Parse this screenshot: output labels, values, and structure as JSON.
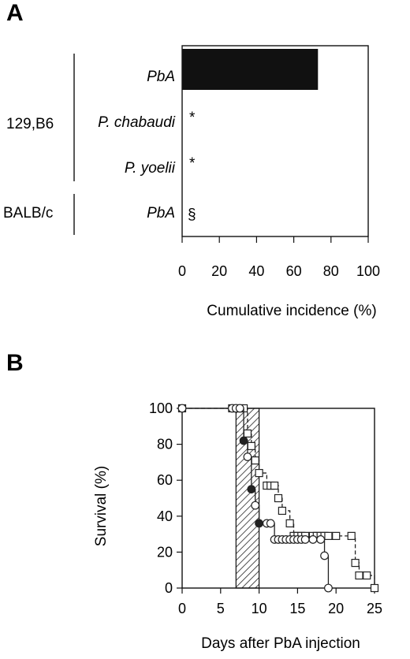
{
  "panels": {
    "a_letter": "A",
    "b_letter": "B"
  },
  "chart_data": [
    {
      "type": "bar",
      "orientation": "horizontal",
      "groups": [
        {
          "name": "129,B6",
          "categories": [
            "PbA",
            "P. chabaudi",
            "P. yoelii"
          ]
        },
        {
          "name": "BALB/c",
          "categories": [
            "PbA"
          ]
        }
      ],
      "categories": [
        "PbA",
        "P. chabaudi",
        "P. yoelii",
        "PbA"
      ],
      "values": [
        73,
        0,
        0,
        0
      ],
      "annotations": [
        "",
        "*",
        "*",
        "§"
      ],
      "xlabel": "Cumulative incidence (%)",
      "xlim": [
        0,
        100
      ],
      "xticks": [
        "0",
        "20",
        "40",
        "60",
        "80",
        "100"
      ],
      "bar_color": "#111111"
    },
    {
      "type": "line",
      "xlabel": "Days after PbA injection",
      "ylabel": "Survival (%)",
      "xlim": [
        0,
        25
      ],
      "ylim": [
        0,
        100
      ],
      "xticks": [
        "0",
        "5",
        "10",
        "15",
        "20",
        "25"
      ],
      "yticks": [
        "0",
        "20",
        "40",
        "60",
        "80",
        "100"
      ],
      "shaded_region": [
        7,
        10
      ],
      "series": [
        {
          "marker": "square",
          "dashed": true,
          "x": [
            0,
            6.5,
            7,
            7.5,
            8,
            8.5,
            9,
            9.5,
            10,
            11,
            11.5,
            12,
            12.5,
            13,
            14,
            14.5,
            15,
            15.5,
            16,
            17,
            17.5,
            18,
            18.5,
            19,
            20,
            22,
            22.5,
            23,
            24,
            25
          ],
          "y": [
            100,
            100,
            100,
            100,
            100,
            86,
            79,
            71,
            64,
            57,
            57,
            57,
            50,
            43,
            36,
            29,
            29,
            29,
            29,
            29,
            29,
            29,
            29,
            29,
            29,
            29,
            14,
            7,
            7,
            0
          ]
        },
        {
          "marker": "circle",
          "dashed": false,
          "x": [
            0,
            6.5,
            7,
            7.5,
            8,
            8.5,
            9,
            9.5,
            10,
            11,
            11.5,
            12,
            12.5,
            13,
            13.5,
            14,
            14.5,
            15,
            15.5,
            16,
            17,
            18,
            18.5,
            19
          ],
          "y": [
            100,
            100,
            100,
            100,
            82,
            73,
            55,
            46,
            36,
            36,
            36,
            27,
            27,
            27,
            27,
            27,
            27,
            27,
            27,
            27,
            27,
            27,
            18,
            0
          ],
          "filled_x": [
            8,
            9,
            10
          ]
        }
      ]
    }
  ]
}
